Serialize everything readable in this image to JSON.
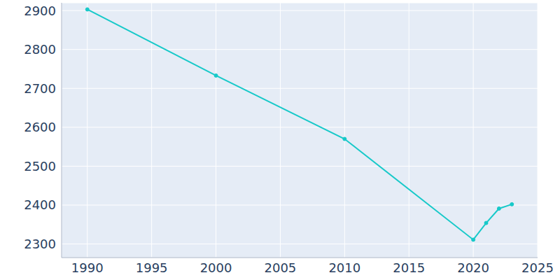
{
  "chart_data": {
    "type": "line",
    "x": [
      1990,
      2000,
      2010,
      2020,
      2021,
      2022,
      2023
    ],
    "values": [
      2903,
      2733,
      2570,
      2311,
      2354,
      2391,
      2402
    ],
    "color": "#17c9c9",
    "xlim": [
      1988,
      2025
    ],
    "xticks": [
      1990,
      1995,
      2000,
      2005,
      2010,
      2015,
      2020,
      2025
    ],
    "ylim": [
      2265,
      2920
    ],
    "yticks": [
      2300,
      2400,
      2500,
      2600,
      2700,
      2800,
      2900
    ],
    "grid": true,
    "marker": "circle"
  }
}
